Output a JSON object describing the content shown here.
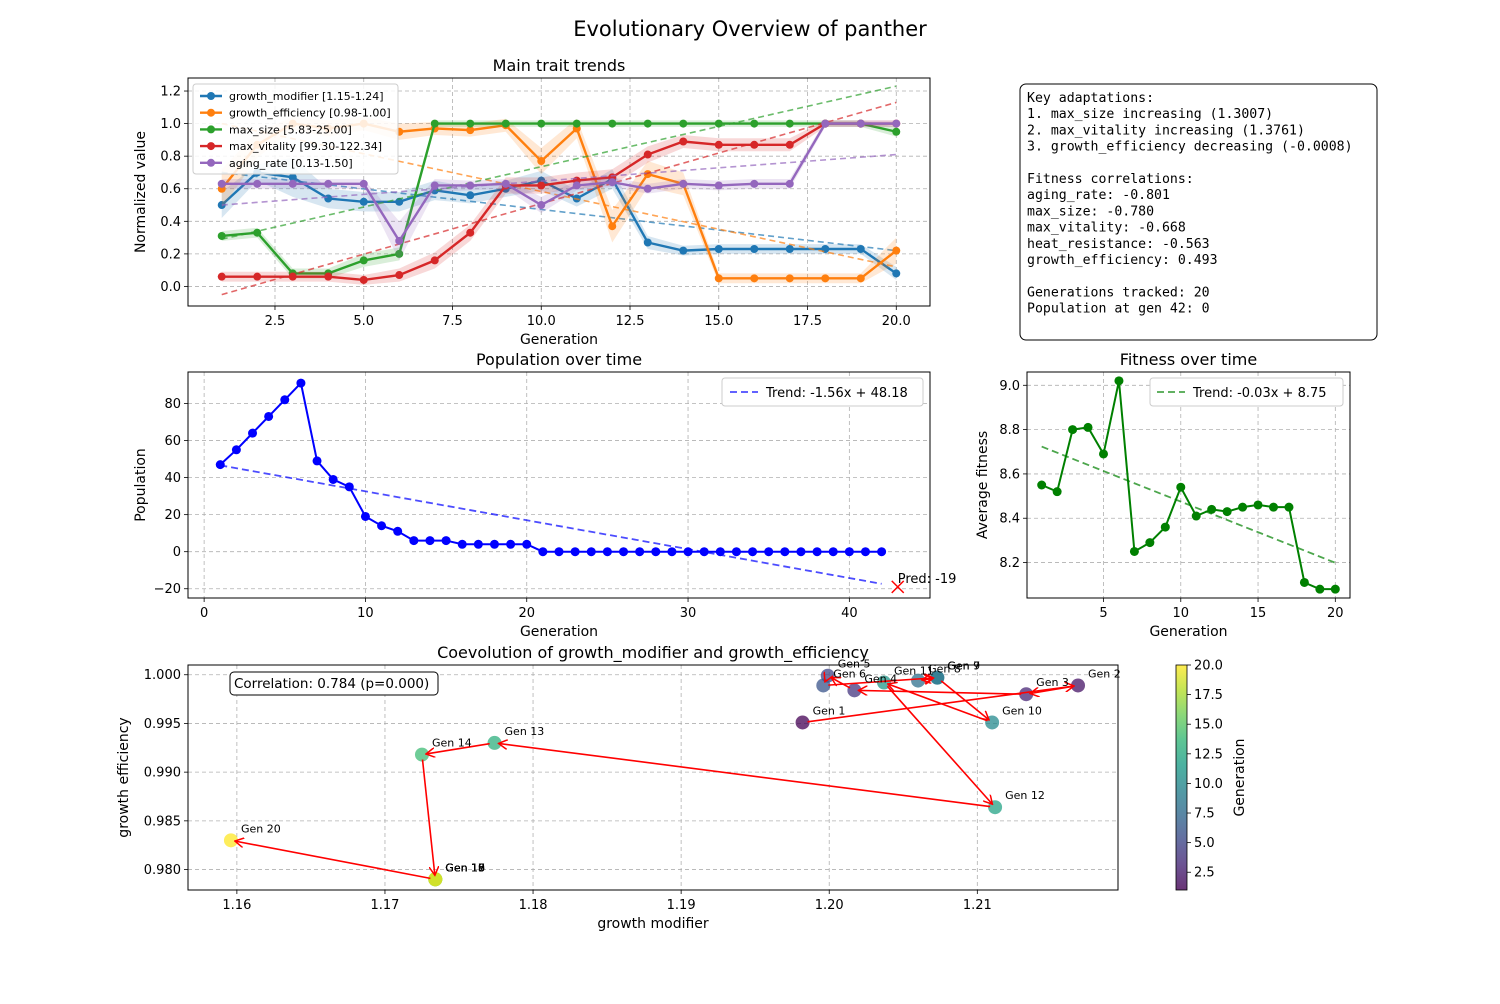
{
  "figure": {
    "title": "Evolutionary Overview of panther"
  },
  "info_box": {
    "lines": [
      "Key adaptations:",
      "1. max_size increasing (1.3007)",
      "2. max_vitality increasing (1.3761)",
      "3. growth_efficiency decreasing (-0.0008)",
      "",
      "Fitness correlations:",
      "aging_rate: -0.801",
      "max_size: -0.780",
      "max_vitality: -0.668",
      "heat_resistance: -0.563",
      "growth_efficiency: 0.493",
      "",
      "Generations tracked: 20",
      "Population at gen 42: 0"
    ]
  },
  "colors": {
    "blue": "#1f77b4",
    "orange": "#ff7f0e",
    "green": "#2ca02c",
    "red": "#d62728",
    "purple": "#9467bd",
    "population": "#0000ff",
    "fitness": "#008000",
    "arrow": "#ff0000"
  },
  "chart_data": [
    {
      "id": "traits",
      "type": "line",
      "title": "Main trait trends",
      "xlabel": "Generation",
      "ylabel": "Normalized value",
      "xlim": [
        0.05,
        20.95
      ],
      "ylim": [
        -0.12,
        1.28
      ],
      "xticks": [
        2.5,
        5.0,
        7.5,
        10.0,
        12.5,
        15.0,
        17.5,
        20.0
      ],
      "xtick_labels": [
        "2.5",
        "5.0",
        "7.5",
        "10.0",
        "12.5",
        "15.0",
        "17.5",
        "20.0"
      ],
      "yticks": [
        0.0,
        0.2,
        0.4,
        0.6,
        0.8,
        1.0,
        1.2
      ],
      "ytick_labels": [
        "0.0",
        "0.2",
        "0.4",
        "0.6",
        "0.8",
        "1.0",
        "1.2"
      ],
      "grid": true,
      "legend": "upper-left",
      "x": [
        1,
        2,
        3,
        4,
        5,
        6,
        7,
        8,
        9,
        10,
        11,
        12,
        13,
        14,
        15,
        16,
        17,
        18,
        19,
        20
      ],
      "series": [
        {
          "name": "growth_modifier [1.15-1.24]",
          "color": "#1f77b4",
          "values": [
            0.5,
            0.7,
            0.67,
            0.54,
            0.52,
            0.52,
            0.59,
            0.56,
            0.6,
            0.65,
            0.54,
            0.66,
            0.27,
            0.22,
            0.23,
            0.23,
            0.23,
            0.23,
            0.23,
            0.08
          ],
          "band": [
            0.08,
            0.05,
            0.12,
            0.06,
            0.06,
            0.06,
            0.06,
            0.05,
            0.05,
            0.06,
            0.05,
            0.06,
            0.04,
            0.03,
            0.03,
            0.03,
            0.03,
            0.03,
            0.03,
            0.04
          ],
          "trend": [
            0.7,
            0.22
          ]
        },
        {
          "name": "growth_efficiency [0.98-1.00]",
          "color": "#ff7f0e",
          "values": [
            0.6,
            0.87,
            1.0,
            0.97,
            1.0,
            0.95,
            0.97,
            0.96,
            0.99,
            0.77,
            0.97,
            0.37,
            0.69,
            0.63,
            0.05,
            0.05,
            0.05,
            0.05,
            0.05,
            0.22
          ],
          "band": [
            0.12,
            0.08,
            0.04,
            0.05,
            0.04,
            0.05,
            0.04,
            0.04,
            0.04,
            0.08,
            0.06,
            0.1,
            0.08,
            0.07,
            0.03,
            0.03,
            0.03,
            0.03,
            0.03,
            0.08
          ],
          "trend": [
            1.0,
            0.12
          ]
        },
        {
          "name": "max_size [5.83-25.00]",
          "color": "#2ca02c",
          "values": [
            0.31,
            0.33,
            0.08,
            0.08,
            0.16,
            0.2,
            1.0,
            1.0,
            1.0,
            1.0,
            1.0,
            1.0,
            1.0,
            1.0,
            1.0,
            1.0,
            1.0,
            1.0,
            1.0,
            0.95
          ],
          "band": [
            0.03,
            0.03,
            0.03,
            0.03,
            0.04,
            0.04,
            0.02,
            0.02,
            0.02,
            0.02,
            0.02,
            0.02,
            0.02,
            0.02,
            0.02,
            0.02,
            0.02,
            0.02,
            0.02,
            0.03
          ],
          "trend": [
            0.29,
            1.23
          ]
        },
        {
          "name": "max_vitality [99.30-122.34]",
          "color": "#d62728",
          "values": [
            0.06,
            0.06,
            0.06,
            0.06,
            0.04,
            0.07,
            0.16,
            0.33,
            0.62,
            0.62,
            0.65,
            0.67,
            0.81,
            0.89,
            0.87,
            0.87,
            0.87,
            1.0,
            1.0,
            1.0
          ],
          "band": [
            0.03,
            0.03,
            0.03,
            0.03,
            0.03,
            0.04,
            0.05,
            0.05,
            0.05,
            0.05,
            0.05,
            0.05,
            0.05,
            0.04,
            0.04,
            0.04,
            0.04,
            0.02,
            0.02,
            0.02
          ],
          "trend": [
            -0.05,
            1.13
          ]
        },
        {
          "name": "aging_rate [0.13-1.50]",
          "color": "#9467bd",
          "values": [
            0.63,
            0.63,
            0.63,
            0.63,
            0.63,
            0.28,
            0.62,
            0.62,
            0.63,
            0.5,
            0.62,
            0.64,
            0.6,
            0.63,
            0.62,
            0.63,
            0.63,
            1.0,
            1.0,
            1.0
          ],
          "band": [
            0.03,
            0.03,
            0.03,
            0.03,
            0.03,
            0.12,
            0.04,
            0.03,
            0.03,
            0.05,
            0.03,
            0.03,
            0.03,
            0.03,
            0.03,
            0.03,
            0.03,
            0.02,
            0.02,
            0.02
          ],
          "trend": [
            0.5,
            0.81
          ]
        }
      ]
    },
    {
      "id": "population",
      "type": "line",
      "title": "Population over time",
      "xlabel": "Generation",
      "ylabel": "Population",
      "xlim": [
        -1.0,
        45.0
      ],
      "ylim": [
        -25,
        97
      ],
      "xticks": [
        0,
        10,
        20,
        30,
        40
      ],
      "xtick_labels": [
        "0",
        "10",
        "20",
        "30",
        "40"
      ],
      "yticks": [
        -20,
        0,
        20,
        40,
        60,
        80
      ],
      "ytick_labels": [
        "−20",
        "0",
        "20",
        "40",
        "60",
        "80"
      ],
      "grid": true,
      "legend": "upper-right",
      "x": [
        1,
        2,
        3,
        4,
        5,
        6,
        7,
        8,
        9,
        10,
        11,
        12,
        13,
        14,
        15,
        16,
        17,
        18,
        19,
        20,
        21,
        22,
        23,
        24,
        25,
        26,
        27,
        28,
        29,
        30,
        31,
        32,
        33,
        34,
        35,
        36,
        37,
        38,
        39,
        40,
        41,
        42
      ],
      "values": [
        47,
        55,
        64,
        73,
        82,
        91,
        49,
        39,
        35,
        19,
        14,
        11,
        6,
        6,
        6,
        4,
        4,
        4,
        4,
        4,
        0,
        0,
        0,
        0,
        0,
        0,
        0,
        0,
        0,
        0,
        0,
        0,
        0,
        0,
        0,
        0,
        0,
        0,
        0,
        0,
        0,
        0
      ],
      "trend": {
        "name": "Trend: -1.56x + 48.18",
        "slope": -1.56,
        "intercept": 48.18,
        "x_range": [
          1,
          42
        ]
      },
      "prediction": {
        "x": 43,
        "y": -19,
        "label": "Pred: -19"
      }
    },
    {
      "id": "fitness",
      "type": "line",
      "title": "Fitness over time",
      "xlabel": "Generation",
      "ylabel": "Average fitness",
      "xlim": [
        0.05,
        20.95
      ],
      "ylim": [
        8.04,
        9.06
      ],
      "xticks": [
        5,
        10,
        15,
        20
      ],
      "xtick_labels": [
        "5",
        "10",
        "15",
        "20"
      ],
      "yticks": [
        8.2,
        8.4,
        8.6,
        8.8,
        9.0
      ],
      "ytick_labels": [
        "8.2",
        "8.4",
        "8.6",
        "8.8",
        "9.0"
      ],
      "grid": true,
      "legend": "upper-right",
      "x": [
        1,
        2,
        3,
        4,
        5,
        6,
        7,
        8,
        9,
        10,
        11,
        12,
        13,
        14,
        15,
        16,
        17,
        18,
        19,
        20
      ],
      "values": [
        8.55,
        8.52,
        8.8,
        8.81,
        8.69,
        9.02,
        8.25,
        8.29,
        8.36,
        8.54,
        8.41,
        8.44,
        8.43,
        8.45,
        8.46,
        8.45,
        8.45,
        8.11,
        8.08,
        8.08
      ],
      "trend": {
        "name": "Trend: -0.03x + 8.75",
        "slope": -0.0276,
        "intercept": 8.751,
        "x_range": [
          1,
          20
        ]
      }
    },
    {
      "id": "coevolution",
      "type": "scatter",
      "title": "Coevolution of growth_modifier and growth_efficiency",
      "xlabel": "growth modifier",
      "ylabel": "growth efficiency",
      "xlim": [
        1.1567,
        1.2195
      ],
      "ylim": [
        0.9779,
        1.001
      ],
      "xticks": [
        1.16,
        1.17,
        1.18,
        1.19,
        1.2,
        1.21
      ],
      "xtick_labels": [
        "1.16",
        "1.17",
        "1.18",
        "1.19",
        "1.20",
        "1.21"
      ],
      "yticks": [
        0.98,
        0.985,
        0.99,
        0.995,
        1.0
      ],
      "ytick_labels": [
        "0.980",
        "0.985",
        "0.990",
        "0.995",
        "1.000"
      ],
      "grid": true,
      "annotation": "Correlation: 0.784 (p=0.000)",
      "points": [
        {
          "gen": 1,
          "x": 1.1982,
          "y": 0.9951,
          "label": "Gen 1"
        },
        {
          "gen": 2,
          "x": 1.2168,
          "y": 0.9989,
          "label": "Gen 2"
        },
        {
          "gen": 3,
          "x": 1.2133,
          "y": 0.998,
          "label": "Gen 3"
        },
        {
          "gen": 4,
          "x": 1.2017,
          "y": 0.9984,
          "label": "Gen 4"
        },
        {
          "gen": 5,
          "x": 1.1999,
          "y": 0.9999,
          "label": "Gen 5"
        },
        {
          "gen": 6,
          "x": 1.1996,
          "y": 0.9989,
          "label": "Gen 6"
        },
        {
          "gen": 7,
          "x": 1.2073,
          "y": 0.9997,
          "label": "Gen 7"
        },
        {
          "gen": 8,
          "x": 1.206,
          "y": 0.9994,
          "label": "Gen 8"
        },
        {
          "gen": 9,
          "x": 1.2073,
          "y": 0.9997,
          "label": "Gen 9"
        },
        {
          "gen": 10,
          "x": 1.211,
          "y": 0.9951,
          "label": "Gen 10"
        },
        {
          "gen": 11,
          "x": 1.2037,
          "y": 0.9992,
          "label": "Gen 11"
        },
        {
          "gen": 12,
          "x": 1.2112,
          "y": 0.9864,
          "label": "Gen 12"
        },
        {
          "gen": 13,
          "x": 1.1774,
          "y": 0.993,
          "label": "Gen 13"
        },
        {
          "gen": 14,
          "x": 1.1725,
          "y": 0.9918,
          "label": "Gen 14"
        },
        {
          "gen": 15,
          "x": 1.1734,
          "y": 0.979,
          "label": "Gen 15"
        },
        {
          "gen": 16,
          "x": 1.1734,
          "y": 0.979,
          "label": "Gen 16"
        },
        {
          "gen": 17,
          "x": 1.1734,
          "y": 0.979,
          "label": "Gen 17"
        },
        {
          "gen": 18,
          "x": 1.1734,
          "y": 0.979,
          "label": "Gen 18"
        },
        {
          "gen": 19,
          "x": 1.1734,
          "y": 0.979,
          "label": "Gen 19"
        },
        {
          "gen": 20,
          "x": 1.1596,
          "y": 0.983,
          "label": "Gen 20"
        }
      ],
      "colorbar": {
        "label": "Generation",
        "range": [
          1,
          20
        ],
        "ticks": [
          2.5,
          5.0,
          7.5,
          10.0,
          12.5,
          15.0,
          17.5,
          20.0
        ],
        "tick_labels": [
          "2.5",
          "5.0",
          "7.5",
          "10.0",
          "12.5",
          "15.0",
          "17.5",
          "20.0"
        ],
        "colormap": [
          "#440154",
          "#482878",
          "#3e4989",
          "#31688e",
          "#26828e",
          "#1f9e89",
          "#35b779",
          "#6ece58",
          "#b5de2b",
          "#fde725"
        ]
      }
    }
  ]
}
